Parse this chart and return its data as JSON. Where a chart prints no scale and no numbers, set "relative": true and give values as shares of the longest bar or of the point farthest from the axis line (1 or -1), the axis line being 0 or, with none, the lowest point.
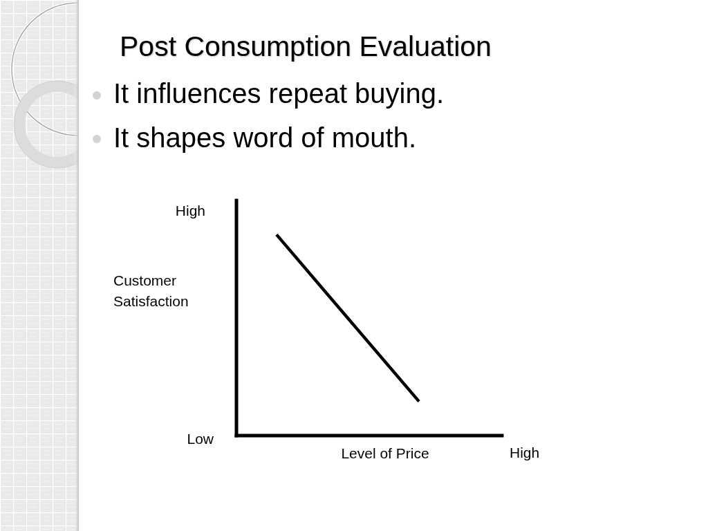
{
  "chart_data": {
    "type": "line",
    "title": "Post Consumption Evaluation",
    "xlabel": "Level of Price",
    "ylabel": "Customer Satisfaction",
    "annotations": [
      "It influences repeat buying.",
      "It shapes word of mouth.",
      "High",
      "Low",
      "High"
    ],
    "categories": [
      null,
      null
    ],
    "values": [
      1,
      0.17
    ],
    "color": "#000000",
    "relative": true
  }
}
